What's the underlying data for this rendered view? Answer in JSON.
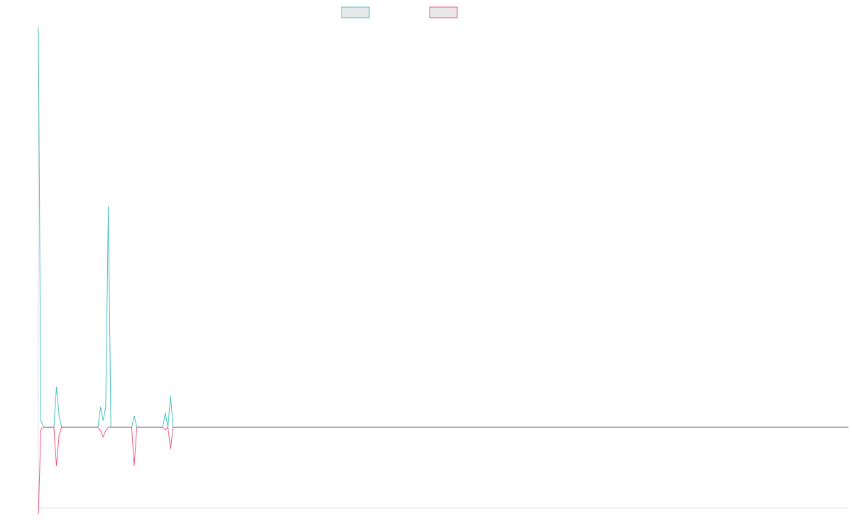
{
  "chart_data": {
    "type": "line",
    "title": "",
    "xlabel": "",
    "ylabel": "",
    "grid": false,
    "legend_position": "top-center",
    "x_count": 100,
    "ylim": [
      -1.0,
      5.0
    ],
    "series": [
      {
        "color": "#4bc0c0",
        "fill": "#e8e8e8",
        "values": [
          4.95,
          0.08,
          0,
          0,
          0,
          0,
          0,
          0.5,
          0.15,
          0,
          0,
          0,
          0,
          0,
          0,
          0,
          0,
          0,
          0,
          0,
          0,
          0,
          0,
          0,
          0.25,
          0.08,
          0.25,
          2.74,
          0,
          0,
          0,
          0,
          0,
          0,
          0,
          0,
          0,
          0.14,
          0,
          0,
          0,
          0,
          0,
          0,
          0,
          0,
          0,
          0,
          0,
          0.18,
          0,
          0.39,
          0,
          0,
          0,
          0,
          0,
          0,
          0,
          0,
          0,
          0,
          0,
          0,
          0,
          0,
          0,
          0,
          0,
          0,
          0,
          0,
          0,
          0,
          0,
          0,
          0,
          0,
          0,
          0,
          0,
          0,
          0,
          0,
          0,
          0,
          0,
          0,
          0,
          0,
          0,
          0,
          0,
          0,
          0,
          0,
          0,
          0,
          0,
          0
        ]
      },
      {
        "color": "#f05a7e",
        "fill": "#e8e8e8",
        "values": [
          -1.08,
          -0.03,
          0,
          0,
          0,
          0,
          0,
          -0.48,
          -0.1,
          0,
          0,
          0,
          0,
          0,
          0,
          0,
          0,
          0,
          0,
          0,
          0,
          0,
          0,
          0,
          -0.04,
          -0.12,
          -0.04,
          0,
          0,
          0,
          0,
          0,
          0,
          0,
          0,
          0,
          0,
          -0.48,
          0,
          0,
          0,
          0,
          0,
          0,
          0,
          0,
          0,
          0,
          0,
          -0.03,
          0,
          -0.27,
          0,
          0,
          0,
          0,
          0,
          0,
          0,
          0,
          0,
          0,
          0,
          0,
          0,
          0,
          0,
          0,
          0,
          0,
          0,
          0,
          0,
          0,
          0,
          0,
          0,
          0,
          0,
          0,
          0,
          0,
          0,
          0,
          0,
          0,
          0,
          0,
          0,
          0,
          0,
          0,
          0,
          0,
          0,
          0,
          0,
          0,
          0,
          0
        ]
      }
    ]
  }
}
